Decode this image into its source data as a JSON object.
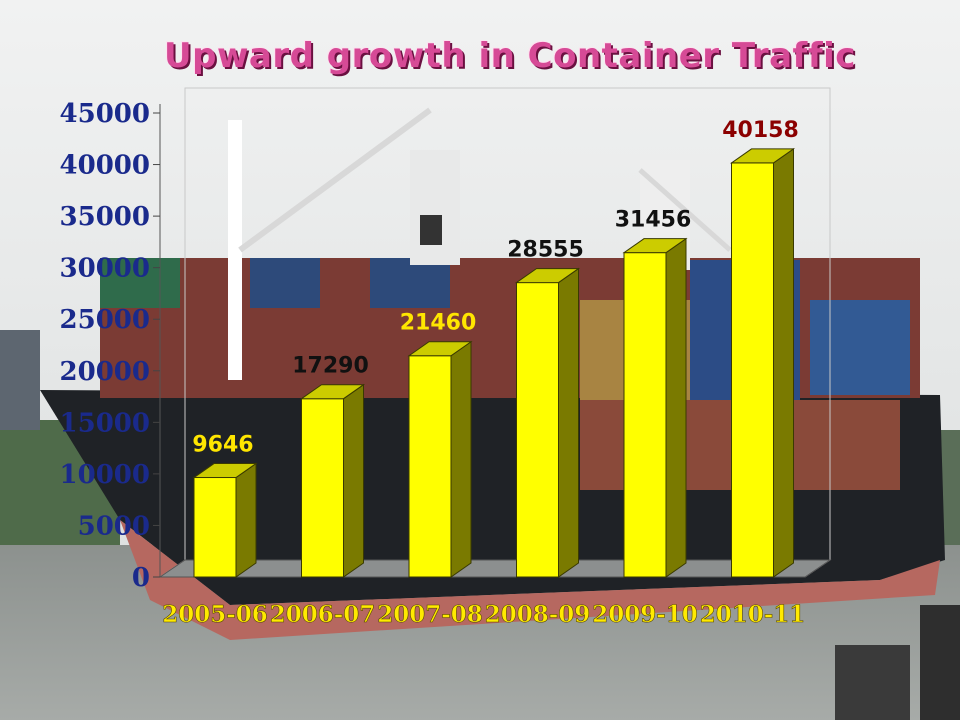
{
  "chart_data": {
    "type": "bar",
    "title": "Upward growth in Container Traffic",
    "categories": [
      "2005-06",
      "2006-07",
      "2007-08",
      "2008-09",
      "2009-10",
      "2010-11"
    ],
    "values": [
      9646,
      17290,
      21460,
      28555,
      31456,
      40158
    ],
    "data_labels": [
      "9646",
      "17290",
      "21460",
      "28555",
      "31456",
      "40158"
    ],
    "yticks": [
      "0",
      "5000",
      "10000",
      "15000",
      "20000",
      "25000",
      "30000",
      "35000",
      "40000",
      "45000"
    ],
    "ylim": [
      0,
      45000
    ],
    "xlabel": "",
    "ylabel": "",
    "grid": false,
    "legend": "none",
    "colors": {
      "bar_front": "#ffff00",
      "bar_side": "#7a7a00",
      "bar_top": "#cccc00",
      "axis_text": "#1a2a8c",
      "category_text": "#ffea00",
      "label_yellow": "#ffe600",
      "label_black": "#111111",
      "label_red": "#8b0000"
    },
    "label_colors": [
      "#ffe600",
      "#111111",
      "#ffe600",
      "#111111",
      "#111111",
      "#8b0000"
    ]
  }
}
